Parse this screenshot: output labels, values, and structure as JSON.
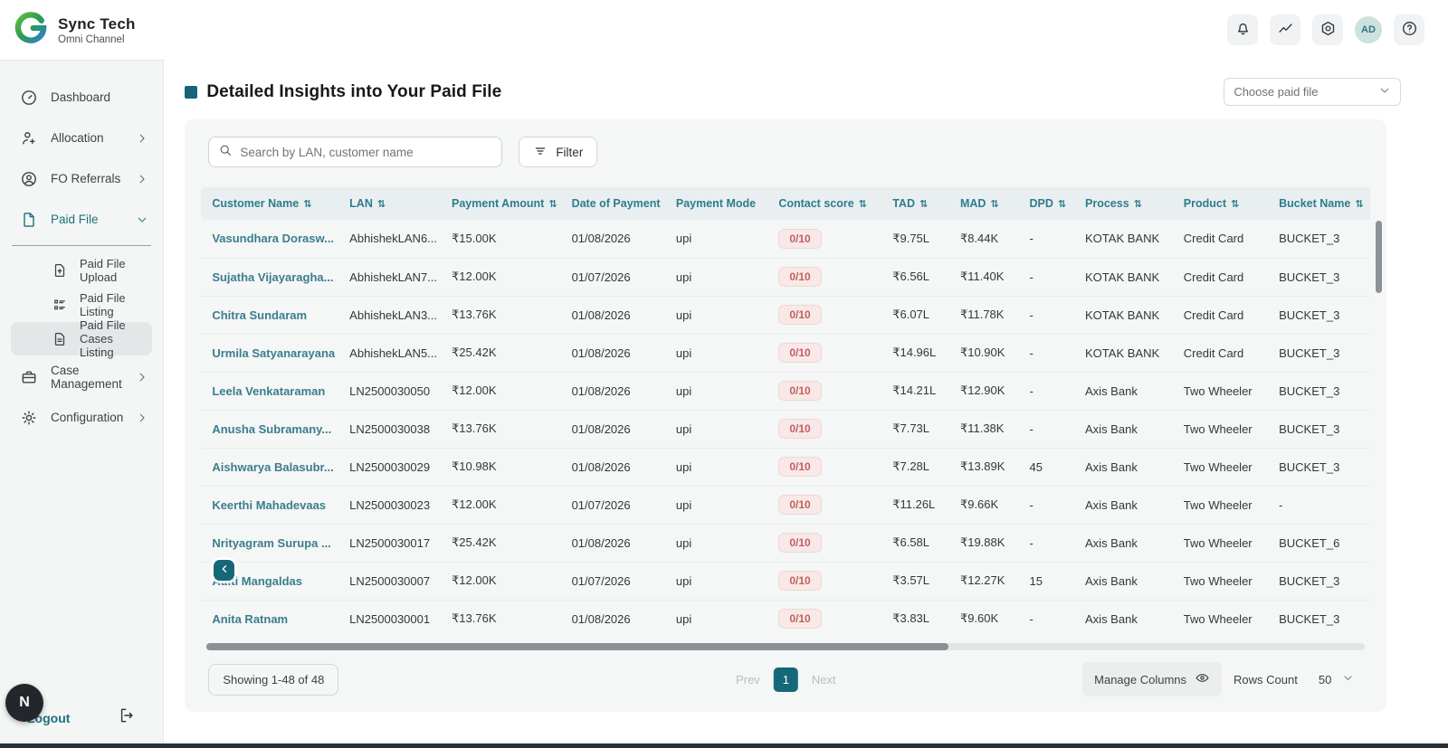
{
  "brand": {
    "title": "Sync Tech",
    "subtitle": "Omni Channel"
  },
  "topbar": {
    "actions": [
      {
        "name": "notifications-button",
        "icon": "bell-icon"
      },
      {
        "name": "analytics-button",
        "icon": "trend-icon"
      },
      {
        "name": "settings-button",
        "icon": "settings-hexagon-icon"
      },
      {
        "name": "user-avatar",
        "label": "AD"
      },
      {
        "name": "help-button",
        "icon": "help-icon"
      }
    ]
  },
  "sidebar": {
    "items": [
      {
        "label": "Dashboard",
        "icon": "gauge-icon",
        "level": 1
      },
      {
        "label": "Allocation",
        "icon": "user-add-icon",
        "level": 1,
        "trailing": "chevron-right-icon"
      },
      {
        "label": "FO Referrals",
        "icon": "user-circle-icon",
        "level": 1,
        "trailing": "chevron-right-icon"
      },
      {
        "label": "Paid File",
        "icon": "file-icon",
        "level": 1,
        "trailing": "chevron-down-icon",
        "expanded": true,
        "divider_below": true
      },
      {
        "label": "Paid File Upload",
        "icon": "file-upload-icon",
        "level": 2
      },
      {
        "label": "Paid File Listing",
        "icon": "list-icon",
        "level": 2
      },
      {
        "label": "Paid File Cases Listing",
        "icon": "file-lines-icon",
        "level": 2,
        "active": true
      },
      {
        "label": "Case Management",
        "icon": "briefcase-icon",
        "level": 1,
        "trailing": "chevron-right-icon"
      },
      {
        "label": "Configuration",
        "icon": "gear-icon",
        "level": 1,
        "trailing": "chevron-right-icon"
      }
    ],
    "footer": {
      "logout_label": "Logout",
      "badge": "N"
    }
  },
  "page": {
    "title": "Detailed Insights into Your Paid File",
    "file_select_placeholder": "Choose paid file"
  },
  "toolbar": {
    "search_placeholder": "Search by LAN, customer name",
    "filter_label": "Filter"
  },
  "table": {
    "columns": [
      {
        "key": "name",
        "label": "Customer Name",
        "sortable": true
      },
      {
        "key": "lan",
        "label": "LAN",
        "sortable": true
      },
      {
        "key": "amount",
        "label": "Payment Amount",
        "sortable": true
      },
      {
        "key": "date",
        "label": "Date of Payment",
        "sortable": false
      },
      {
        "key": "mode",
        "label": "Payment Mode",
        "sortable": false
      },
      {
        "key": "score",
        "label": "Contact score",
        "sortable": true
      },
      {
        "key": "tad",
        "label": "TAD",
        "sortable": true
      },
      {
        "key": "mad",
        "label": "MAD",
        "sortable": true
      },
      {
        "key": "dpd",
        "label": "DPD",
        "sortable": true
      },
      {
        "key": "process",
        "label": "Process",
        "sortable": true
      },
      {
        "key": "product",
        "label": "Product",
        "sortable": true
      },
      {
        "key": "bucket",
        "label": "Bucket Name",
        "sortable": true
      }
    ],
    "rows": [
      {
        "name": "Vasundhara Dorasw...",
        "lan": "AbhishekLAN6...",
        "amount": "₹15.00K",
        "date": "01/08/2026",
        "mode": "upi",
        "score": "0/10",
        "tad": "₹9.75L",
        "mad": "₹8.44K",
        "dpd": "-",
        "process": "KOTAK BANK",
        "product": "Credit Card",
        "bucket": "BUCKET_3"
      },
      {
        "name": "Sujatha Vijayaragha...",
        "lan": "AbhishekLAN7...",
        "amount": "₹12.00K",
        "date": "01/07/2026",
        "mode": "upi",
        "score": "0/10",
        "tad": "₹6.56L",
        "mad": "₹11.40K",
        "dpd": "-",
        "process": "KOTAK BANK",
        "product": "Credit Card",
        "bucket": "BUCKET_3"
      },
      {
        "name": "Chitra Sundaram",
        "lan": "AbhishekLAN3...",
        "amount": "₹13.76K",
        "date": "01/08/2026",
        "mode": "upi",
        "score": "0/10",
        "tad": "₹6.07L",
        "mad": "₹11.78K",
        "dpd": "-",
        "process": "KOTAK BANK",
        "product": "Credit Card",
        "bucket": "BUCKET_3"
      },
      {
        "name": "Urmila Satyanarayana",
        "lan": "AbhishekLAN5...",
        "amount": "₹25.42K",
        "date": "01/08/2026",
        "mode": "upi",
        "score": "0/10",
        "tad": "₹14.96L",
        "mad": "₹10.90K",
        "dpd": "-",
        "process": "KOTAK BANK",
        "product": "Credit Card",
        "bucket": "BUCKET_3"
      },
      {
        "name": "Leela Venkataraman",
        "lan": "LN2500030050",
        "amount": "₹12.00K",
        "date": "01/08/2026",
        "mode": "upi",
        "score": "0/10",
        "tad": "₹14.21L",
        "mad": "₹12.90K",
        "dpd": "-",
        "process": "Axis Bank",
        "product": "Two Wheeler",
        "bucket": "BUCKET_3"
      },
      {
        "name": "Anusha Subramany...",
        "lan": "LN2500030038",
        "amount": "₹13.76K",
        "date": "01/08/2026",
        "mode": "upi",
        "score": "0/10",
        "tad": "₹7.73L",
        "mad": "₹11.38K",
        "dpd": "-",
        "process": "Axis Bank",
        "product": "Two Wheeler",
        "bucket": "BUCKET_3"
      },
      {
        "name": "Aishwarya Balasubr...",
        "lan": "LN2500030029",
        "amount": "₹10.98K",
        "date": "01/08/2026",
        "mode": "upi",
        "score": "0/10",
        "tad": "₹7.28L",
        "mad": "₹13.89K",
        "dpd": "45",
        "process": "Axis Bank",
        "product": "Two Wheeler",
        "bucket": "BUCKET_3"
      },
      {
        "name": "Keerthi Mahadevaas",
        "lan": "LN2500030023",
        "amount": "₹12.00K",
        "date": "01/07/2026",
        "mode": "upi",
        "score": "0/10",
        "tad": "₹11.26L",
        "mad": "₹9.66K",
        "dpd": "-",
        "process": "Axis Bank",
        "product": "Two Wheeler",
        "bucket": "-"
      },
      {
        "name": "Nrityagram Surupa ...",
        "lan": "LN2500030017",
        "amount": "₹25.42K",
        "date": "01/08/2026",
        "mode": "upi",
        "score": "0/10",
        "tad": "₹6.58L",
        "mad": "₹19.88K",
        "dpd": "-",
        "process": "Axis Bank",
        "product": "Two Wheeler",
        "bucket": "BUCKET_6"
      },
      {
        "name": "Aditi Mangaldas",
        "lan": "LN2500030007",
        "amount": "₹12.00K",
        "date": "01/07/2026",
        "mode": "upi",
        "score": "0/10",
        "tad": "₹3.57L",
        "mad": "₹12.27K",
        "dpd": "15",
        "process": "Axis Bank",
        "product": "Two Wheeler",
        "bucket": "BUCKET_3"
      },
      {
        "name": "Anita Ratnam",
        "lan": "LN2500030001",
        "amount": "₹13.76K",
        "date": "01/08/2026",
        "mode": "upi",
        "score": "0/10",
        "tad": "₹3.83L",
        "mad": "₹9.60K",
        "dpd": "-",
        "process": "Axis Bank",
        "product": "Two Wheeler",
        "bucket": "BUCKET_3"
      }
    ]
  },
  "pagination": {
    "showing": "Showing 1-48 of 48",
    "prev_label": "Prev",
    "current_page": "1",
    "next_label": "Next",
    "manage_columns_label": "Manage Columns",
    "rows_count_label": "Rows Count",
    "rows_count_value": "50"
  },
  "colors": {
    "accent_teal": "#166879",
    "link_teal": "#3a7e8d",
    "table_header_text": "#2e7c8c",
    "table_header_bg": "#e9eff1",
    "score_badge_bg": "#f8e9e8",
    "score_badge_text": "#c0605f",
    "sidebar_bg": "#f4f5f5",
    "card_bg": "#f5f6f6"
  }
}
